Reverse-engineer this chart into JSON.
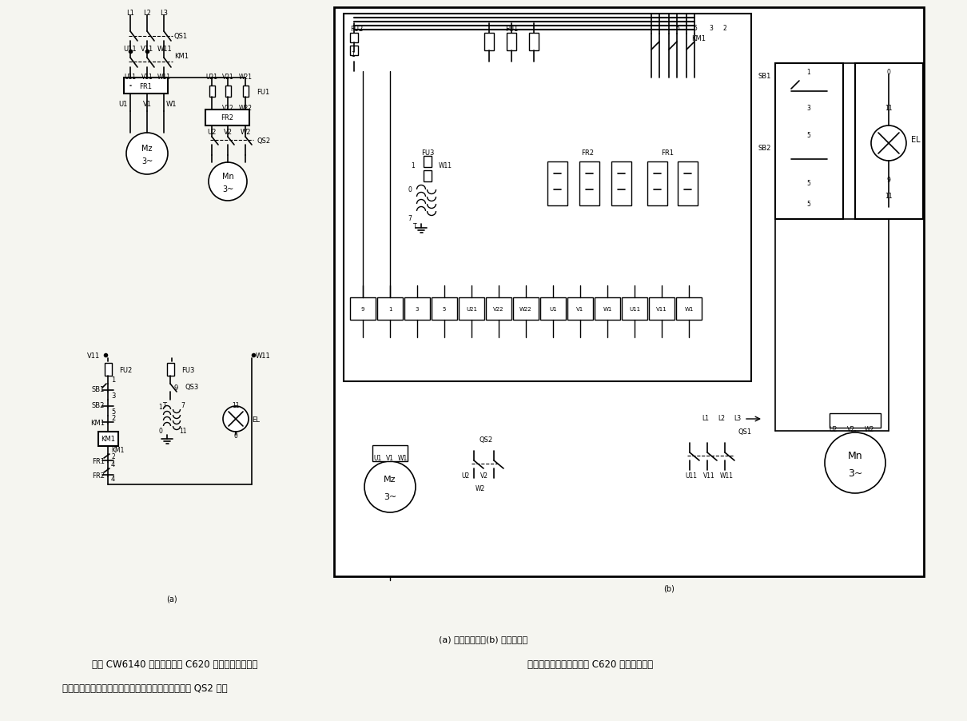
{
  "bg_color": "#f5f5f0",
  "fig_width": 12.1,
  "fig_height": 9.03,
  "dpi": 100,
  "caption_center": "(a) 电气原理图；(b) 电气接线图",
  "text_line1a": "所示 CW6140 型车床电路和 C620 型车床电路类似，",
  "text_line1b": "制。但配电板的施工不如 C620 典型和合理。",
  "text_line2": "是典型单向起动连续运转的电路，冷却泵电机用开关 QS2 来控"
}
